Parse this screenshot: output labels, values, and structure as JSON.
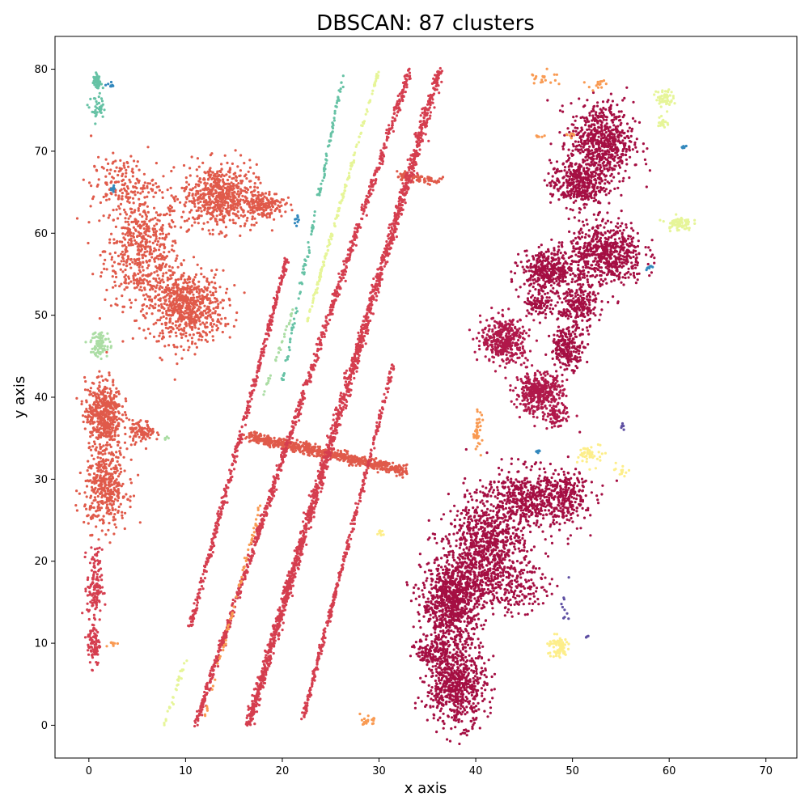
{
  "chart_data": {
    "type": "scatter",
    "title": "DBSCAN: 87 clusters",
    "xlabel": "x axis",
    "ylabel": "y axis",
    "xlim": [
      -3.5,
      73.2
    ],
    "ylim": [
      -4,
      84
    ],
    "xticks": [
      0,
      10,
      20,
      30,
      40,
      50,
      60,
      70
    ],
    "yticks": [
      0,
      10,
      20,
      30,
      40,
      50,
      60,
      70,
      80
    ],
    "grid": false,
    "colors": {
      "red_cluster": "#e05a4a",
      "crimson_cluster": "#d53e4f",
      "dark_cluster": "#a50f43",
      "magenta_cluster": "#b0184a",
      "teal": "#66c2a5",
      "light_green": "#abdda4",
      "yellow": "#fdee8a",
      "orange": "#f99a52",
      "blue": "#3288bd",
      "pale_yellow": "#e6f598",
      "purple": "#5e4fa2"
    },
    "series": [
      {
        "color_key": "red_cluster",
        "blobs": [
          {
            "cx": 5.5,
            "cy": 58,
            "rx": 3.5,
            "ry": 6,
            "n": 520
          },
          {
            "cx": 10,
            "cy": 51,
            "rx": 3.5,
            "ry": 4,
            "n": 700
          },
          {
            "cx": 13.5,
            "cy": 64.5,
            "rx": 3.5,
            "ry": 3.5,
            "n": 620
          },
          {
            "cx": 18,
            "cy": 63.5,
            "rx": 2,
            "ry": 1.5,
            "n": 160
          },
          {
            "cx": 3.5,
            "cy": 66,
            "rx": 3,
            "ry": 3,
            "n": 150
          },
          {
            "cx": 1.5,
            "cy": 38,
            "rx": 1.7,
            "ry": 3.8,
            "n": 480
          },
          {
            "cx": 5.5,
            "cy": 35.8,
            "rx": 1.2,
            "ry": 1.2,
            "n": 90
          },
          {
            "cx": 1.8,
            "cy": 29,
            "rx": 2,
            "ry": 4.5,
            "n": 420
          }
        ],
        "lines": [
          {
            "x1": 16.5,
            "y1": 35.2,
            "x2": 32.8,
            "y2": 31,
            "n": 700,
            "w": 0.3
          },
          {
            "x1": 32,
            "y1": 67,
            "x2": 36.3,
            "y2": 66.3,
            "n": 90,
            "w": 0.25
          }
        ]
      },
      {
        "color_key": "crimson_cluster",
        "blobs": [
          {
            "cx": 0.6,
            "cy": 17,
            "rx": 0.7,
            "ry": 4,
            "n": 130
          },
          {
            "cx": 0.5,
            "cy": 10,
            "rx": 0.6,
            "ry": 2.5,
            "n": 90
          }
        ],
        "lines": [
          {
            "x1": 16.5,
            "y1": 0,
            "x2": 36.3,
            "y2": 80,
            "n": 1500,
            "w": 0.22
          },
          {
            "x1": 11,
            "y1": 0,
            "x2": 33.2,
            "y2": 80,
            "n": 900,
            "w": 0.15
          },
          {
            "x1": 10.5,
            "y1": 12,
            "x2": 20.5,
            "y2": 57,
            "n": 420,
            "w": 0.12
          },
          {
            "x1": 22.2,
            "y1": 1,
            "x2": 31.5,
            "y2": 44,
            "n": 350,
            "w": 0.1
          },
          {
            "x1": 17,
            "y1": 2,
            "x2": 24,
            "y2": 31,
            "n": 200,
            "w": 0.12
          }
        ]
      },
      {
        "color_key": "dark_cluster",
        "blobs": [
          {
            "cx": 38,
            "cy": 5,
            "rx": 2.8,
            "ry": 4.5,
            "n": 650
          },
          {
            "cx": 37.5,
            "cy": 15,
            "rx": 2.8,
            "ry": 5,
            "n": 850
          },
          {
            "cx": 41,
            "cy": 22,
            "rx": 3.5,
            "ry": 4.5,
            "n": 650
          },
          {
            "cx": 45.5,
            "cy": 27.5,
            "rx": 5,
            "ry": 3.5,
            "n": 600
          },
          {
            "cx": 43,
            "cy": 17,
            "rx": 4,
            "ry": 3,
            "n": 260
          },
          {
            "cx": 35.5,
            "cy": 9,
            "rx": 1.5,
            "ry": 1.5,
            "n": 120
          },
          {
            "cx": 49.5,
            "cy": 28,
            "rx": 1.8,
            "ry": 2.5,
            "n": 150
          },
          {
            "cx": 53,
            "cy": 71,
            "rx": 3,
            "ry": 4.5,
            "n": 650
          },
          {
            "cx": 50.5,
            "cy": 66,
            "rx": 2.5,
            "ry": 2.5,
            "n": 350
          },
          {
            "cx": 53.5,
            "cy": 57.5,
            "rx": 3.5,
            "ry": 3.5,
            "n": 600
          },
          {
            "cx": 47.5,
            "cy": 55.5,
            "rx": 2.5,
            "ry": 2.2,
            "n": 380
          },
          {
            "cx": 50.5,
            "cy": 51,
            "rx": 1.8,
            "ry": 2.5,
            "n": 230
          },
          {
            "cx": 49.5,
            "cy": 46,
            "rx": 1.6,
            "ry": 2.2,
            "n": 220
          },
          {
            "cx": 46.5,
            "cy": 51.5,
            "rx": 1.2,
            "ry": 1.5,
            "n": 100
          }
        ],
        "lines": []
      },
      {
        "color_key": "magenta_cluster",
        "blobs": [
          {
            "cx": 46.5,
            "cy": 40.5,
            "rx": 2.2,
            "ry": 2.2,
            "n": 400
          },
          {
            "cx": 43,
            "cy": 47,
            "rx": 2.2,
            "ry": 2.5,
            "n": 380
          },
          {
            "cx": 48.5,
            "cy": 37.5,
            "rx": 1,
            "ry": 1.2,
            "n": 60
          }
        ],
        "lines": []
      },
      {
        "color_key": "teal",
        "blobs": [
          {
            "cx": 0.8,
            "cy": 78.5,
            "rx": 0.4,
            "ry": 0.7,
            "n": 55
          },
          {
            "cx": 1,
            "cy": 75,
            "rx": 0.7,
            "ry": 1.5,
            "n": 40
          }
        ],
        "lines": [
          {
            "x1": 20,
            "y1": 42,
            "x2": 26.3,
            "y2": 79.5,
            "n": 120,
            "w": 0.08
          }
        ]
      },
      {
        "color_key": "light_green",
        "blobs": [
          {
            "cx": 1.2,
            "cy": 46.5,
            "rx": 0.9,
            "ry": 1.5,
            "n": 80
          },
          {
            "cx": 8,
            "cy": 35,
            "rx": 0.3,
            "ry": 0.3,
            "n": 6
          }
        ],
        "lines": [
          {
            "x1": 18,
            "y1": 40,
            "x2": 21.5,
            "y2": 52,
            "n": 30,
            "w": 0.06
          }
        ]
      },
      {
        "color_key": "pale_yellow",
        "blobs": [
          {
            "cx": 59.5,
            "cy": 76.5,
            "rx": 0.8,
            "ry": 1,
            "n": 60
          },
          {
            "cx": 61,
            "cy": 61.2,
            "rx": 1.2,
            "ry": 0.8,
            "n": 70
          },
          {
            "cx": 59.3,
            "cy": 73.5,
            "rx": 0.4,
            "ry": 0.8,
            "n": 22
          }
        ],
        "lines": [
          {
            "x1": 22.5,
            "y1": 49,
            "x2": 30,
            "y2": 80,
            "n": 160,
            "w": 0.06
          },
          {
            "x1": 7.8,
            "y1": 0,
            "x2": 10,
            "y2": 8,
            "n": 30,
            "w": 0.08
          }
        ]
      },
      {
        "color_key": "yellow",
        "blobs": [
          {
            "cx": 48.5,
            "cy": 9.5,
            "rx": 1,
            "ry": 1.3,
            "n": 80
          },
          {
            "cx": 52,
            "cy": 33,
            "rx": 1.2,
            "ry": 1.2,
            "n": 50
          },
          {
            "cx": 55,
            "cy": 31,
            "rx": 0.6,
            "ry": 0.6,
            "n": 15
          },
          {
            "cx": 30.2,
            "cy": 23.3,
            "rx": 0.3,
            "ry": 0.3,
            "n": 10
          }
        ],
        "lines": []
      },
      {
        "color_key": "orange",
        "blobs": [
          {
            "cx": 28.8,
            "cy": 0.5,
            "rx": 0.6,
            "ry": 0.5,
            "n": 25
          },
          {
            "cx": 40.2,
            "cy": 36,
            "rx": 0.4,
            "ry": 2,
            "n": 40
          },
          {
            "cx": 47,
            "cy": 79,
            "rx": 1.5,
            "ry": 0.8,
            "n": 20
          },
          {
            "cx": 52.5,
            "cy": 78.2,
            "rx": 1,
            "ry": 0.6,
            "n": 14
          },
          {
            "cx": 2.5,
            "cy": 9.8,
            "rx": 0.5,
            "ry": 0.6,
            "n": 8
          },
          {
            "cx": 50,
            "cy": 72,
            "rx": 0.5,
            "ry": 0.3,
            "n": 8
          },
          {
            "cx": 46.5,
            "cy": 71.8,
            "rx": 0.4,
            "ry": 0.2,
            "n": 6
          }
        ],
        "lines": [
          {
            "x1": 12,
            "y1": 1,
            "x2": 18,
            "y2": 28,
            "n": 60,
            "w": 0.06
          }
        ]
      },
      {
        "color_key": "blue",
        "blobs": [
          {
            "cx": 2.4,
            "cy": 78,
            "rx": 0.4,
            "ry": 0.3,
            "n": 8
          },
          {
            "cx": 2.5,
            "cy": 65.5,
            "rx": 0.2,
            "ry": 0.5,
            "n": 8
          },
          {
            "cx": 61.5,
            "cy": 70.5,
            "rx": 0.4,
            "ry": 0.2,
            "n": 6
          },
          {
            "cx": 57.9,
            "cy": 55.8,
            "rx": 0.3,
            "ry": 0.3,
            "n": 8
          },
          {
            "cx": 46.3,
            "cy": 33.3,
            "rx": 0.3,
            "ry": 0.2,
            "n": 6
          },
          {
            "cx": 21.5,
            "cy": 61.5,
            "rx": 0.3,
            "ry": 1,
            "n": 8
          }
        ],
        "lines": []
      },
      {
        "color_key": "purple",
        "blobs": [
          {
            "cx": 49.2,
            "cy": 14.5,
            "rx": 0.4,
            "ry": 1.5,
            "n": 10
          },
          {
            "cx": 55.3,
            "cy": 36.5,
            "rx": 0.4,
            "ry": 0.5,
            "n": 6
          },
          {
            "cx": 51.5,
            "cy": 10.8,
            "rx": 0.2,
            "ry": 0.2,
            "n": 3
          }
        ],
        "lines": []
      }
    ]
  }
}
